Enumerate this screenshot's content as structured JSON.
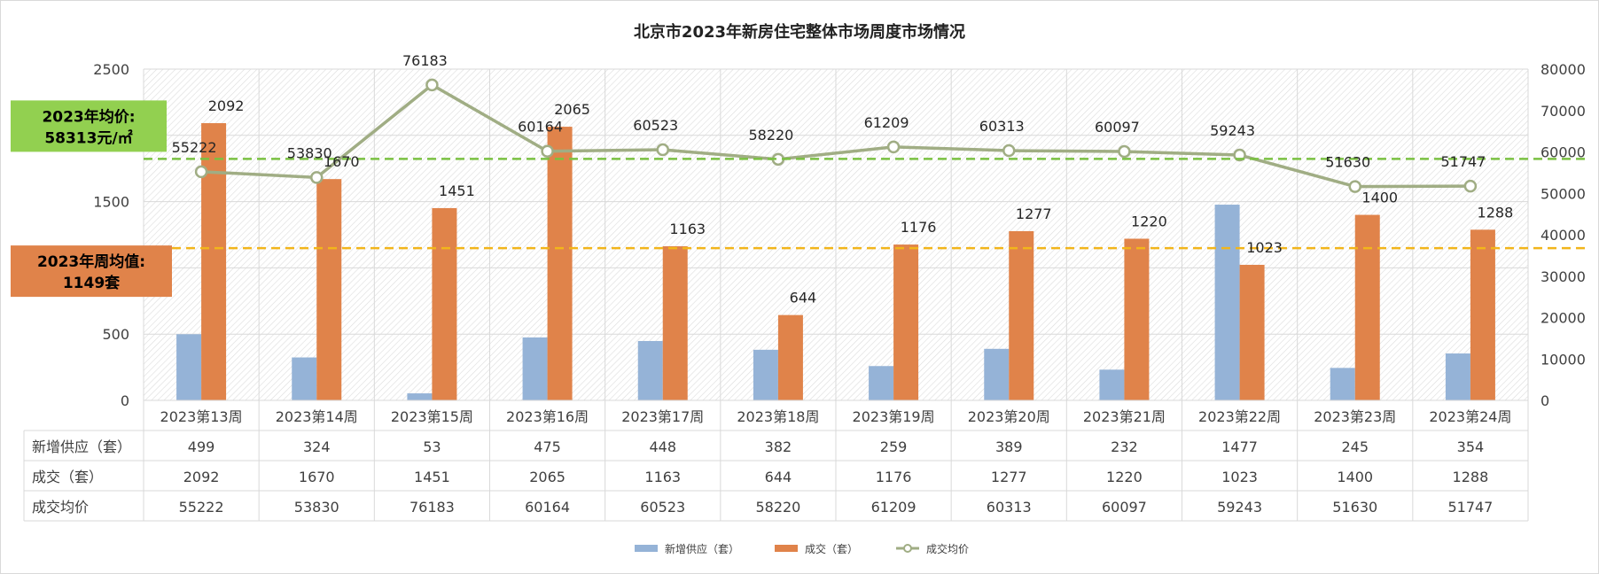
{
  "chart_data": {
    "type": "bar",
    "title": "北京市2023年新房住宅整体市场周度市场情况",
    "categories": [
      "2023第13周",
      "2023第14周",
      "2023第15周",
      "2023第16周",
      "2023第17周",
      "2023第18周",
      "2023第19周",
      "2023第20周",
      "2023第21周",
      "2023第22周",
      "2023第23周",
      "2023第24周"
    ],
    "series": [
      {
        "name": "新增供应（套）",
        "kind": "bar",
        "axis": "left",
        "color": "#95b3d7",
        "values": [
          499,
          324,
          53,
          475,
          448,
          382,
          259,
          389,
          232,
          1477,
          245,
          354
        ]
      },
      {
        "name": "成交（套）",
        "kind": "bar",
        "axis": "left",
        "color": "#e0834a",
        "values": [
          2092,
          1670,
          1451,
          2065,
          1163,
          644,
          1176,
          1277,
          1220,
          1023,
          1400,
          1288
        ]
      },
      {
        "name": "成交均价",
        "kind": "line",
        "axis": "right",
        "color": "#a0ad84",
        "values": [
          55222,
          53830,
          76183,
          60164,
          60523,
          58220,
          61209,
          60313,
          60097,
          59243,
          51630,
          51747
        ]
      }
    ],
    "y_left": {
      "min": 0,
      "max": 2500,
      "ticks": [
        "0",
        "500",
        "1000",
        "1500",
        "2000",
        "2500"
      ]
    },
    "y_right": {
      "min": 0,
      "max": 80000,
      "ticks": [
        "0",
        "10000",
        "20000",
        "30000",
        "40000",
        "50000",
        "60000",
        "70000",
        "80000"
      ]
    },
    "reference_lines": [
      {
        "axis": "right",
        "value": 58313,
        "color": "#7ac142",
        "label_line1": "2023年均价:",
        "label_line2": "58313元/㎡",
        "box_color": "#92d050"
      },
      {
        "axis": "left",
        "value": 1149,
        "color": "#f2b51b",
        "label_line1": "2023年周均值:",
        "label_line2": "1149套",
        "box_color": "#e0834a"
      }
    ],
    "table_rows": [
      {
        "label": "新增供应（套）",
        "series": 0
      },
      {
        "label": "成交（套）",
        "series": 1
      },
      {
        "label": "成交均价",
        "series": 2
      }
    ],
    "legend_position": "bottom",
    "grid": true
  }
}
